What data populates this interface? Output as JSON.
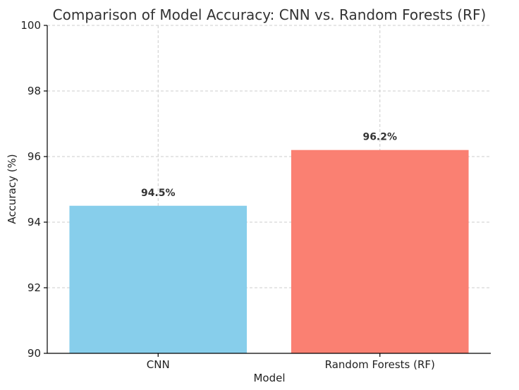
{
  "chart_data": {
    "type": "bar",
    "title": "Comparison of Model Accuracy: CNN vs. Random Forests (RF)",
    "xlabel": "Model",
    "ylabel": "Accuracy (%)",
    "categories": [
      "CNN",
      "Random Forests (RF)"
    ],
    "values": [
      94.5,
      96.2
    ],
    "data_labels": [
      "94.5%",
      "96.2%"
    ],
    "colors": [
      "#87CEEB",
      "#FA8072"
    ],
    "ylim": [
      90,
      100
    ],
    "yticks": [
      90,
      92,
      94,
      96,
      98,
      100
    ],
    "grid": true,
    "legend": "none"
  }
}
